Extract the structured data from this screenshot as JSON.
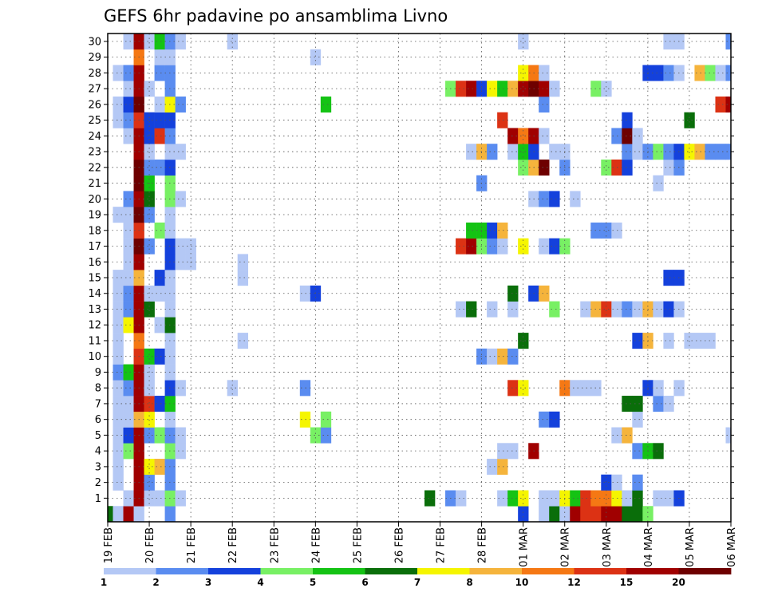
{
  "chart_data": {
    "type": "heatmap",
    "title": "GEFS 6hr padavine po ansamblima Livno",
    "xlabel": "",
    "ylabel": "",
    "x_tick_labels": [
      "19 FEB",
      "20 FEB",
      "21 FEB",
      "22 FEB",
      "23 FEB",
      "24 FEB",
      "25 FEB",
      "26 FEB",
      "27 FEB",
      "28 FEB",
      "01 MAR",
      "02 MAR",
      "03 MAR",
      "04 MAR",
      "05 MAR",
      "06 MAR"
    ],
    "y_tick_labels": [
      "1",
      "2",
      "3",
      "4",
      "5",
      "6",
      "7",
      "8",
      "9",
      "10",
      "11",
      "12",
      "13",
      "14",
      "15",
      "16",
      "17",
      "18",
      "19",
      "20",
      "21",
      "22",
      "23",
      "24",
      "25",
      "26",
      "27",
      "28",
      "29",
      "30"
    ],
    "xlim": [
      0,
      60
    ],
    "ylim": [
      0,
      30
    ],
    "time_steps_per_day": 4,
    "grid": true,
    "colorbar": {
      "labels": [
        "1",
        "2",
        "3",
        "4",
        "5",
        "6",
        "7",
        "8",
        "10",
        "12",
        "15",
        "20"
      ],
      "colors": [
        "#b4c8f5",
        "#5a8cf0",
        "#1441dc",
        "#78f064",
        "#14c314",
        "#0a6e0a",
        "#f5f500",
        "#f5b43c",
        "#f57814",
        "#dc3214",
        "#a00000",
        "#6e0000"
      ]
    },
    "units": "mm/6h",
    "cells": [
      [
        0,
        0,
        6
      ],
      [
        1,
        0,
        1
      ],
      [
        2,
        0,
        11
      ],
      [
        3,
        0,
        1
      ],
      [
        6,
        0,
        2
      ],
      [
        40,
        0,
        3
      ],
      [
        42,
        0,
        1
      ],
      [
        43,
        0,
        6
      ],
      [
        44,
        0,
        1
      ],
      [
        45,
        0,
        11
      ],
      [
        46,
        0,
        10
      ],
      [
        47,
        0,
        10
      ],
      [
        48,
        0,
        11
      ],
      [
        49,
        0,
        11
      ],
      [
        50,
        0,
        6
      ],
      [
        51,
        0,
        6
      ],
      [
        52,
        0,
        4
      ],
      [
        2,
        1,
        1
      ],
      [
        3,
        1,
        11
      ],
      [
        4,
        1,
        1
      ],
      [
        5,
        1,
        1
      ],
      [
        6,
        1,
        4
      ],
      [
        7,
        1,
        1
      ],
      [
        31,
        1,
        6
      ],
      [
        33,
        1,
        2
      ],
      [
        34,
        1,
        1
      ],
      [
        38,
        1,
        1
      ],
      [
        39,
        1,
        5
      ],
      [
        40,
        1,
        7
      ],
      [
        42,
        1,
        1
      ],
      [
        43,
        1,
        1
      ],
      [
        44,
        1,
        7
      ],
      [
        45,
        1,
        5
      ],
      [
        46,
        1,
        10
      ],
      [
        47,
        1,
        9
      ],
      [
        48,
        1,
        9
      ],
      [
        49,
        1,
        7
      ],
      [
        50,
        1,
        1
      ],
      [
        51,
        1,
        6
      ],
      [
        53,
        1,
        1
      ],
      [
        54,
        1,
        1
      ],
      [
        55,
        1,
        3
      ],
      [
        1,
        2,
        1
      ],
      [
        3,
        2,
        11
      ],
      [
        4,
        2,
        2
      ],
      [
        6,
        2,
        2
      ],
      [
        48,
        2,
        3
      ],
      [
        49,
        2,
        1
      ],
      [
        51,
        2,
        2
      ],
      [
        1,
        3,
        1
      ],
      [
        3,
        3,
        11
      ],
      [
        4,
        3,
        7
      ],
      [
        5,
        3,
        8
      ],
      [
        6,
        3,
        2
      ],
      [
        37,
        3,
        1
      ],
      [
        38,
        3,
        8
      ],
      [
        1,
        4,
        1
      ],
      [
        2,
        4,
        4
      ],
      [
        3,
        4,
        11
      ],
      [
        6,
        4,
        4
      ],
      [
        7,
        4,
        1
      ],
      [
        38,
        4,
        1
      ],
      [
        39,
        4,
        1
      ],
      [
        41,
        4,
        11
      ],
      [
        51,
        4,
        2
      ],
      [
        52,
        4,
        5
      ],
      [
        53,
        4,
        6
      ],
      [
        1,
        5,
        1
      ],
      [
        2,
        5,
        3
      ],
      [
        3,
        5,
        11
      ],
      [
        4,
        5,
        2
      ],
      [
        5,
        5,
        4
      ],
      [
        6,
        5,
        2
      ],
      [
        7,
        5,
        1
      ],
      [
        20,
        5,
        4
      ],
      [
        21,
        5,
        2
      ],
      [
        49,
        5,
        1
      ],
      [
        50,
        5,
        8
      ],
      [
        60,
        5,
        1
      ],
      [
        1,
        6,
        1
      ],
      [
        2,
        6,
        1
      ],
      [
        3,
        6,
        8
      ],
      [
        4,
        6,
        7
      ],
      [
        6,
        6,
        1
      ],
      [
        19,
        6,
        7
      ],
      [
        21,
        6,
        4
      ],
      [
        42,
        6,
        2
      ],
      [
        43,
        6,
        3
      ],
      [
        51,
        6,
        1
      ],
      [
        1,
        7,
        1
      ],
      [
        2,
        7,
        1
      ],
      [
        3,
        7,
        11
      ],
      [
        4,
        7,
        10
      ],
      [
        5,
        7,
        3
      ],
      [
        6,
        7,
        5
      ],
      [
        50,
        7,
        6
      ],
      [
        51,
        7,
        6
      ],
      [
        53,
        7,
        2
      ],
      [
        54,
        7,
        1
      ],
      [
        1,
        8,
        1
      ],
      [
        2,
        8,
        2
      ],
      [
        3,
        8,
        11
      ],
      [
        4,
        8,
        1
      ],
      [
        6,
        8,
        3
      ],
      [
        7,
        8,
        1
      ],
      [
        12,
        8,
        1
      ],
      [
        19,
        8,
        2
      ],
      [
        39,
        8,
        10
      ],
      [
        40,
        8,
        7
      ],
      [
        44,
        8,
        9
      ],
      [
        45,
        8,
        1
      ],
      [
        46,
        8,
        1
      ],
      [
        47,
        8,
        1
      ],
      [
        52,
        8,
        3
      ],
      [
        53,
        8,
        1
      ],
      [
        55,
        8,
        1
      ],
      [
        1,
        9,
        2
      ],
      [
        2,
        9,
        5
      ],
      [
        3,
        9,
        11
      ],
      [
        4,
        9,
        1
      ],
      [
        6,
        9,
        1
      ],
      [
        1,
        10,
        1
      ],
      [
        3,
        10,
        10
      ],
      [
        4,
        10,
        5
      ],
      [
        5,
        10,
        3
      ],
      [
        6,
        10,
        1
      ],
      [
        36,
        10,
        2
      ],
      [
        37,
        10,
        1
      ],
      [
        38,
        10,
        8
      ],
      [
        39,
        10,
        2
      ],
      [
        1,
        11,
        1
      ],
      [
        3,
        11,
        9
      ],
      [
        6,
        11,
        1
      ],
      [
        13,
        11,
        1
      ],
      [
        40,
        11,
        6
      ],
      [
        51,
        11,
        3
      ],
      [
        52,
        11,
        8
      ],
      [
        54,
        11,
        1
      ],
      [
        56,
        11,
        1
      ],
      [
        57,
        11,
        1
      ],
      [
        58,
        11,
        1
      ],
      [
        1,
        12,
        1
      ],
      [
        2,
        12,
        7
      ],
      [
        3,
        12,
        11
      ],
      [
        5,
        12,
        1
      ],
      [
        6,
        12,
        6
      ],
      [
        1,
        13,
        1
      ],
      [
        2,
        13,
        2
      ],
      [
        3,
        13,
        11
      ],
      [
        4,
        13,
        6
      ],
      [
        6,
        13,
        1
      ],
      [
        34,
        13,
        1
      ],
      [
        35,
        13,
        6
      ],
      [
        37,
        13,
        1
      ],
      [
        39,
        13,
        1
      ],
      [
        43,
        13,
        4
      ],
      [
        46,
        13,
        1
      ],
      [
        47,
        13,
        8
      ],
      [
        48,
        13,
        10
      ],
      [
        49,
        13,
        1
      ],
      [
        50,
        13,
        2
      ],
      [
        51,
        13,
        1
      ],
      [
        52,
        13,
        8
      ],
      [
        53,
        13,
        1
      ],
      [
        54,
        13,
        3
      ],
      [
        55,
        13,
        1
      ],
      [
        1,
        14,
        1
      ],
      [
        2,
        14,
        2
      ],
      [
        3,
        14,
        11
      ],
      [
        4,
        14,
        1
      ],
      [
        5,
        14,
        1
      ],
      [
        6,
        14,
        1
      ],
      [
        19,
        14,
        1
      ],
      [
        20,
        14,
        3
      ],
      [
        39,
        14,
        6
      ],
      [
        41,
        14,
        3
      ],
      [
        42,
        14,
        8
      ],
      [
        1,
        15,
        1
      ],
      [
        2,
        15,
        1
      ],
      [
        3,
        15,
        8
      ],
      [
        5,
        15,
        3
      ],
      [
        6,
        15,
        1
      ],
      [
        13,
        15,
        1
      ],
      [
        54,
        15,
        3
      ],
      [
        55,
        15,
        3
      ],
      [
        2,
        16,
        1
      ],
      [
        3,
        16,
        11
      ],
      [
        6,
        16,
        3
      ],
      [
        7,
        16,
        1
      ],
      [
        8,
        16,
        1
      ],
      [
        13,
        16,
        1
      ],
      [
        2,
        17,
        1
      ],
      [
        3,
        17,
        12
      ],
      [
        4,
        17,
        2
      ],
      [
        6,
        17,
        3
      ],
      [
        7,
        17,
        1
      ],
      [
        8,
        17,
        1
      ],
      [
        34,
        17,
        10
      ],
      [
        35,
        17,
        11
      ],
      [
        36,
        17,
        4
      ],
      [
        37,
        17,
        2
      ],
      [
        38,
        17,
        1
      ],
      [
        40,
        17,
        7
      ],
      [
        42,
        17,
        1
      ],
      [
        43,
        17,
        3
      ],
      [
        44,
        17,
        4
      ],
      [
        2,
        18,
        1
      ],
      [
        3,
        18,
        10
      ],
      [
        5,
        18,
        4
      ],
      [
        6,
        18,
        1
      ],
      [
        35,
        18,
        5
      ],
      [
        36,
        18,
        5
      ],
      [
        37,
        18,
        3
      ],
      [
        38,
        18,
        8
      ],
      [
        47,
        18,
        2
      ],
      [
        48,
        18,
        2
      ],
      [
        49,
        18,
        1
      ],
      [
        1,
        19,
        1
      ],
      [
        2,
        19,
        1
      ],
      [
        3,
        19,
        12
      ],
      [
        4,
        19,
        2
      ],
      [
        6,
        19,
        1
      ],
      [
        2,
        20,
        2
      ],
      [
        3,
        20,
        11
      ],
      [
        4,
        20,
        6
      ],
      [
        6,
        20,
        4
      ],
      [
        7,
        20,
        1
      ],
      [
        41,
        20,
        1
      ],
      [
        42,
        20,
        2
      ],
      [
        43,
        20,
        3
      ],
      [
        45,
        20,
        1
      ],
      [
        3,
        21,
        12
      ],
      [
        4,
        21,
        5
      ],
      [
        6,
        21,
        4
      ],
      [
        36,
        21,
        2
      ],
      [
        53,
        21,
        1
      ],
      [
        3,
        22,
        12
      ],
      [
        4,
        22,
        2
      ],
      [
        5,
        22,
        2
      ],
      [
        6,
        22,
        3
      ],
      [
        40,
        22,
        4
      ],
      [
        41,
        22,
        8
      ],
      [
        42,
        22,
        12
      ],
      [
        44,
        22,
        2
      ],
      [
        48,
        22,
        4
      ],
      [
        49,
        22,
        10
      ],
      [
        50,
        22,
        3
      ],
      [
        54,
        22,
        1
      ],
      [
        55,
        22,
        2
      ],
      [
        3,
        23,
        11
      ],
      [
        4,
        23,
        1
      ],
      [
        6,
        23,
        1
      ],
      [
        7,
        23,
        1
      ],
      [
        35,
        23,
        1
      ],
      [
        36,
        23,
        8
      ],
      [
        37,
        23,
        2
      ],
      [
        39,
        23,
        1
      ],
      [
        40,
        23,
        5
      ],
      [
        41,
        23,
        3
      ],
      [
        43,
        23,
        1
      ],
      [
        44,
        23,
        1
      ],
      [
        50,
        23,
        2
      ],
      [
        51,
        23,
        1
      ],
      [
        52,
        23,
        2
      ],
      [
        53,
        23,
        4
      ],
      [
        54,
        23,
        2
      ],
      [
        55,
        23,
        3
      ],
      [
        56,
        23,
        7
      ],
      [
        57,
        23,
        8
      ],
      [
        58,
        23,
        2
      ],
      [
        59,
        23,
        2
      ],
      [
        60,
        23,
        2
      ],
      [
        2,
        24,
        1
      ],
      [
        3,
        24,
        11
      ],
      [
        4,
        24,
        3
      ],
      [
        5,
        24,
        10
      ],
      [
        6,
        24,
        2
      ],
      [
        39,
        24,
        11
      ],
      [
        40,
        24,
        9
      ],
      [
        41,
        24,
        11
      ],
      [
        42,
        24,
        1
      ],
      [
        49,
        24,
        2
      ],
      [
        50,
        24,
        12
      ],
      [
        51,
        24,
        1
      ],
      [
        1,
        25,
        1
      ],
      [
        2,
        25,
        2
      ],
      [
        3,
        25,
        10
      ],
      [
        4,
        25,
        3
      ],
      [
        5,
        25,
        3
      ],
      [
        6,
        25,
        3
      ],
      [
        38,
        25,
        10
      ],
      [
        50,
        25,
        3
      ],
      [
        56,
        25,
        6
      ],
      [
        1,
        26,
        1
      ],
      [
        2,
        26,
        3
      ],
      [
        3,
        26,
        12
      ],
      [
        5,
        26,
        1
      ],
      [
        6,
        26,
        7
      ],
      [
        7,
        26,
        2
      ],
      [
        21,
        26,
        5
      ],
      [
        42,
        26,
        2
      ],
      [
        59,
        26,
        10
      ],
      [
        60,
        26,
        11
      ],
      [
        2,
        27,
        1
      ],
      [
        3,
        27,
        11
      ],
      [
        4,
        27,
        1
      ],
      [
        6,
        27,
        2
      ],
      [
        33,
        27,
        4
      ],
      [
        34,
        27,
        10
      ],
      [
        35,
        27,
        11
      ],
      [
        36,
        27,
        3
      ],
      [
        37,
        27,
        7
      ],
      [
        38,
        27,
        5
      ],
      [
        39,
        27,
        8
      ],
      [
        40,
        27,
        11
      ],
      [
        41,
        27,
        12
      ],
      [
        42,
        27,
        11
      ],
      [
        43,
        27,
        1
      ],
      [
        47,
        27,
        4
      ],
      [
        48,
        27,
        1
      ],
      [
        1,
        28,
        1
      ],
      [
        2,
        28,
        2
      ],
      [
        3,
        28,
        11
      ],
      [
        5,
        28,
        2
      ],
      [
        6,
        28,
        2
      ],
      [
        40,
        28,
        7
      ],
      [
        41,
        28,
        9
      ],
      [
        42,
        28,
        1
      ],
      [
        52,
        28,
        3
      ],
      [
        53,
        28,
        3
      ],
      [
        54,
        28,
        2
      ],
      [
        55,
        28,
        1
      ],
      [
        57,
        28,
        8
      ],
      [
        58,
        28,
        4
      ],
      [
        59,
        28,
        1
      ],
      [
        60,
        28,
        2
      ],
      [
        3,
        29,
        9
      ],
      [
        5,
        29,
        1
      ],
      [
        6,
        29,
        1
      ],
      [
        20,
        29,
        1
      ],
      [
        2,
        30,
        1
      ],
      [
        3,
        30,
        11
      ],
      [
        4,
        30,
        1
      ],
      [
        5,
        30,
        5
      ],
      [
        6,
        30,
        2
      ],
      [
        7,
        30,
        1
      ],
      [
        12,
        30,
        1
      ],
      [
        40,
        30,
        1
      ],
      [
        54,
        30,
        1
      ],
      [
        55,
        30,
        1
      ],
      [
        60,
        30,
        2
      ]
    ]
  }
}
